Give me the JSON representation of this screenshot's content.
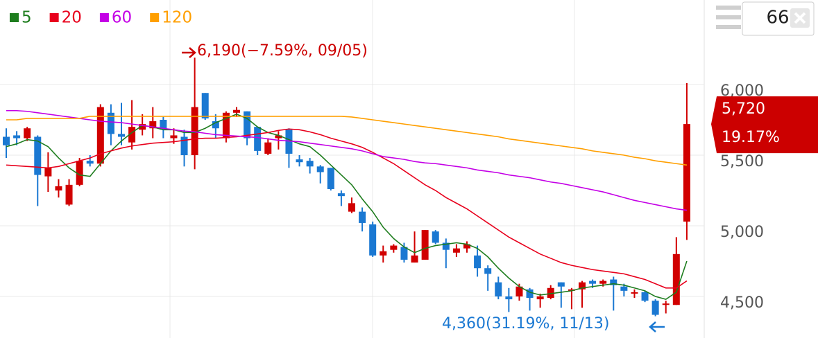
{
  "chart_data": {
    "type": "candlestick",
    "up_color": "#d10000",
    "down_color": "#1a78d2",
    "open": [
      5630,
      5640,
      5620,
      5630,
      5350,
      5250,
      5150,
      5290,
      5460,
      5440,
      5800,
      5650,
      5590,
      5680,
      5690,
      5750,
      5620,
      5630,
      5500,
      5940,
      5740,
      5620,
      5800,
      5810,
      5700,
      5510,
      5620,
      5680,
      5470,
      5460,
      5420,
      5410,
      5230,
      5100,
      5100,
      5010,
      4790,
      4830,
      4850,
      4740,
      4760,
      4960,
      4880,
      4810,
      4840,
      4790,
      4700,
      4600,
      4500,
      4500,
      4550,
      4480,
      4490,
      4600,
      4540,
      4550,
      4610,
      4590,
      4620,
      4570,
      4520,
      4530,
      4470,
      4440,
      4440,
      5030
    ],
    "high": [
      5690,
      5670,
      5700,
      5640,
      5520,
      5330,
      5330,
      5480,
      5500,
      5860,
      5860,
      5870,
      5890,
      5790,
      5840,
      5770,
      5690,
      5680,
      6190,
      5940,
      5790,
      5810,
      5840,
      5810,
      5700,
      5620,
      5670,
      5690,
      5500,
      5480,
      5430,
      5410,
      5250,
      5200,
      5130,
      5030,
      4860,
      4870,
      4880,
      4960,
      4970,
      4970,
      4910,
      4870,
      4890,
      4860,
      4720,
      4640,
      4560,
      4590,
      4560,
      4520,
      4580,
      4600,
      4560,
      4610,
      4620,
      4620,
      4640,
      4590,
      4550,
      4540,
      4480,
      4470,
      4920,
      6010
    ],
    "low": [
      5480,
      5570,
      5600,
      5140,
      5240,
      5200,
      5140,
      5280,
      5420,
      5420,
      5570,
      5570,
      5540,
      5640,
      5620,
      5620,
      5580,
      5420,
      5400,
      5750,
      5620,
      5590,
      5770,
      5570,
      5500,
      5500,
      5540,
      5410,
      5420,
      5370,
      5300,
      5250,
      5140,
      5090,
      4960,
      4780,
      4740,
      4810,
      4740,
      4740,
      4760,
      4870,
      4700,
      4780,
      4810,
      4640,
      4540,
      4480,
      4390,
      4470,
      4400,
      4420,
      4480,
      4420,
      4410,
      4420,
      4560,
      4570,
      4400,
      4500,
      4490,
      4460,
      4360,
      4380,
      4440,
      4900
    ],
    "close": [
      5570,
      5620,
      5690,
      5360,
      5410,
      5280,
      5290,
      5460,
      5440,
      5840,
      5650,
      5630,
      5700,
      5720,
      5740,
      5680,
      5640,
      5500,
      5840,
      5760,
      5690,
      5800,
      5820,
      5620,
      5530,
      5590,
      5640,
      5510,
      5450,
      5420,
      5380,
      5260,
      5210,
      5160,
      5020,
      4790,
      4820,
      4860,
      4760,
      4790,
      4970,
      4880,
      4830,
      4840,
      4870,
      4700,
      4660,
      4500,
      4480,
      4570,
      4490,
      4500,
      4560,
      4570,
      4550,
      4600,
      4590,
      4610,
      4580,
      4540,
      4530,
      4470,
      4370,
      4450,
      4800,
      5720
    ],
    "series": [
      {
        "name": "5",
        "color": "#1e7d1e",
        "values": [
          5560,
          5580,
          5610,
          5600,
          5560,
          5480,
          5410,
          5360,
          5350,
          5440,
          5530,
          5600,
          5660,
          5710,
          5700,
          5680,
          5680,
          5660,
          5660,
          5690,
          5730,
          5760,
          5790,
          5760,
          5700,
          5660,
          5640,
          5610,
          5580,
          5560,
          5500,
          5430,
          5360,
          5290,
          5190,
          5100,
          4990,
          4910,
          4850,
          4810,
          4840,
          4860,
          4870,
          4880,
          4870,
          4840,
          4780,
          4700,
          4630,
          4570,
          4530,
          4510,
          4520,
          4530,
          4540,
          4560,
          4570,
          4580,
          4590,
          4580,
          4560,
          4540,
          4500,
          4480,
          4530,
          4750
        ]
      },
      {
        "name": "20",
        "color": "#e8001c",
        "values": [
          5430,
          5425,
          5420,
          5415,
          5410,
          5420,
          5440,
          5460,
          5480,
          5510,
          5530,
          5550,
          5565,
          5575,
          5585,
          5590,
          5595,
          5605,
          5615,
          5620,
          5620,
          5625,
          5630,
          5640,
          5650,
          5660,
          5675,
          5685,
          5680,
          5665,
          5645,
          5620,
          5600,
          5580,
          5555,
          5520,
          5480,
          5440,
          5390,
          5340,
          5290,
          5250,
          5200,
          5160,
          5120,
          5070,
          5020,
          4970,
          4920,
          4880,
          4840,
          4800,
          4770,
          4740,
          4720,
          4705,
          4690,
          4680,
          4670,
          4660,
          4640,
          4620,
          4590,
          4560,
          4560,
          4610
        ]
      },
      {
        "name": "60",
        "color": "#c400e6",
        "values": [
          5815,
          5815,
          5810,
          5800,
          5790,
          5780,
          5770,
          5760,
          5750,
          5740,
          5735,
          5730,
          5720,
          5710,
          5700,
          5690,
          5680,
          5670,
          5665,
          5655,
          5645,
          5640,
          5635,
          5630,
          5625,
          5615,
          5605,
          5600,
          5595,
          5585,
          5575,
          5565,
          5555,
          5545,
          5530,
          5510,
          5490,
          5480,
          5470,
          5455,
          5445,
          5440,
          5430,
          5420,
          5410,
          5395,
          5385,
          5375,
          5360,
          5350,
          5340,
          5325,
          5310,
          5300,
          5285,
          5270,
          5255,
          5240,
          5220,
          5200,
          5180,
          5165,
          5150,
          5135,
          5120,
          5110
        ]
      },
      {
        "name": "120",
        "color": "#ff9f00",
        "values": [
          5750,
          5750,
          5760,
          5760,
          5760,
          5760,
          5760,
          5760,
          5775,
          5775,
          5775,
          5775,
          5775,
          5775,
          5775,
          5775,
          5775,
          5775,
          5775,
          5775,
          5775,
          5775,
          5775,
          5775,
          5775,
          5775,
          5775,
          5775,
          5775,
          5775,
          5775,
          5775,
          5775,
          5770,
          5760,
          5750,
          5740,
          5730,
          5720,
          5710,
          5700,
          5690,
          5680,
          5670,
          5660,
          5650,
          5640,
          5630,
          5615,
          5605,
          5595,
          5585,
          5575,
          5565,
          5555,
          5545,
          5530,
          5520,
          5510,
          5500,
          5485,
          5475,
          5460,
          5450,
          5440,
          5430
        ]
      }
    ],
    "ylim": [
      4206,
      6598
    ],
    "yticks": [
      {
        "value": 4500,
        "label": "4,500"
      },
      {
        "value": 5000,
        "label": "5,000"
      },
      {
        "value": 5500,
        "label": "5,500"
      },
      {
        "value": 6000,
        "label": "6,000"
      }
    ],
    "grid": true,
    "max_label": "6,190(−7.59%, 09/05)",
    "min_label": "4,360(31.19%, 11/13)",
    "last_price_label": "5,720",
    "last_change_label": "19.17%",
    "visible_count": "66"
  }
}
